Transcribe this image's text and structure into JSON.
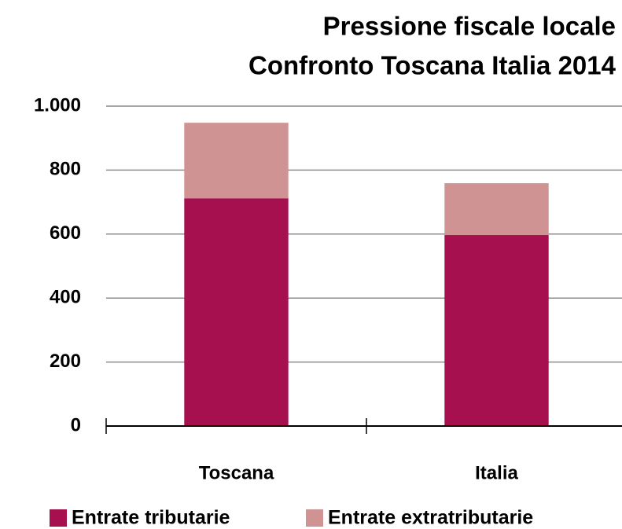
{
  "chart_data": {
    "type": "stacked_bar",
    "title": [
      "Pressione fiscale locale",
      "Confronto Toscana Italia 2014"
    ],
    "categories": [
      "Toscana",
      "Italia"
    ],
    "series": [
      {
        "name": "Entrate tributarie",
        "color": "#a6104f",
        "values": [
          712,
          597
        ]
      },
      {
        "name": "Entrate extratributarie",
        "color": "#d09393",
        "values": [
          236,
          162
        ]
      }
    ],
    "ylim": [
      0,
      1000
    ],
    "yticks": [
      0,
      200,
      400,
      600,
      800,
      {
        "value": 1000,
        "label": "1.000"
      }
    ],
    "grid": true,
    "legend": "bottom"
  }
}
